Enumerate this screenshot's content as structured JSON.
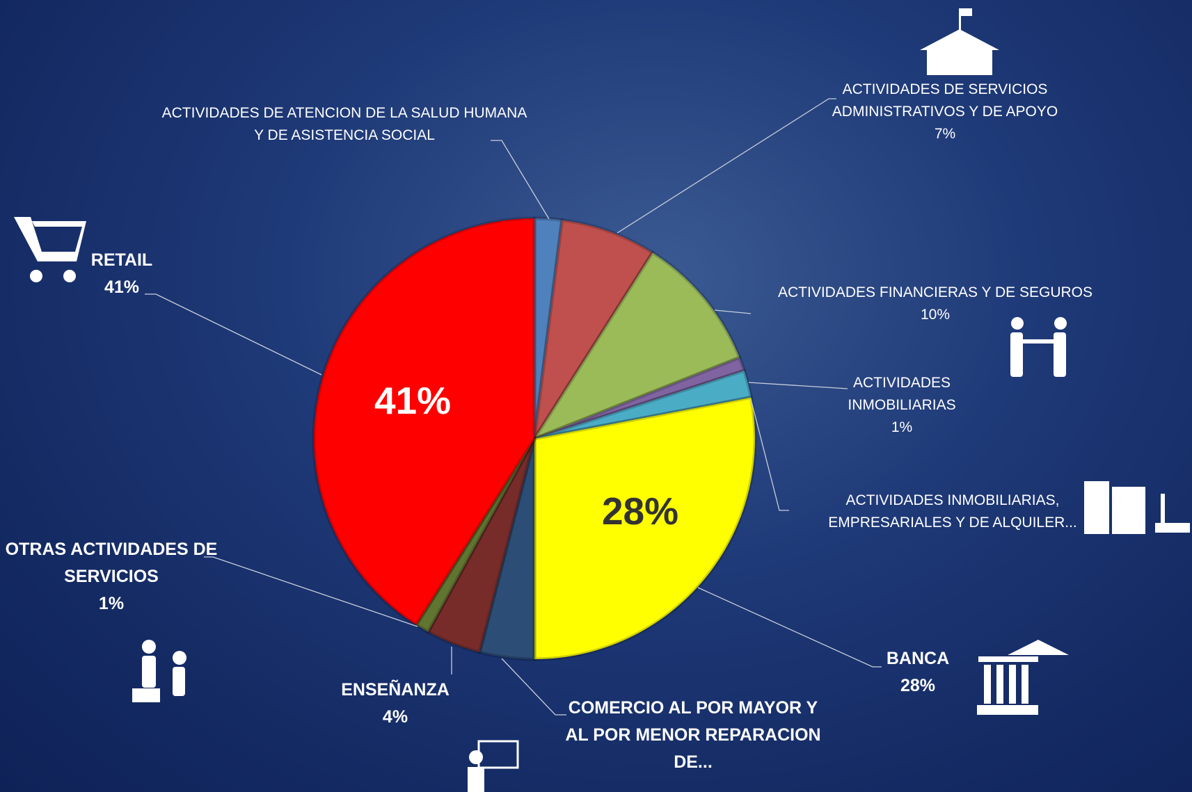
{
  "chart_data": {
    "type": "pie",
    "categories": [
      "ACTIVIDADES DE ATENCION DE LA SALUD HUMANA Y DE ASISTENCIA SOCIAL",
      "ACTIVIDADES DE SERVICIOS ADMINISTRATIVOS Y DE APOYO",
      "ACTIVIDADES FINANCIERAS Y DE SEGUROS",
      "ACTIVIDADES INMOBILIARIAS",
      "ACTIVIDADES INMOBILIARIAS, EMPRESARIALES Y DE ALQUILER...",
      "BANCA",
      "COMERCIO AL POR MAYOR Y AL POR MENOR REPARACION DE...",
      "ENSEÑANZA",
      "OTRAS ACTIVIDADES DE SERVICIOS",
      "RETAIL"
    ],
    "values": [
      2,
      7,
      10,
      1,
      2,
      28,
      4,
      4,
      1,
      41
    ],
    "value_labels": [
      null,
      "7%",
      "10%",
      "1%",
      null,
      "28%",
      null,
      "4%",
      "1%",
      "41%"
    ],
    "colors": [
      "#4f81bd",
      "#c0504d",
      "#9bbb59",
      "#8064a2",
      "#4bacc6",
      "#ffff00",
      "#2c4d75",
      "#772c2a",
      "#5f7530",
      "#ff0000"
    ]
  }
}
